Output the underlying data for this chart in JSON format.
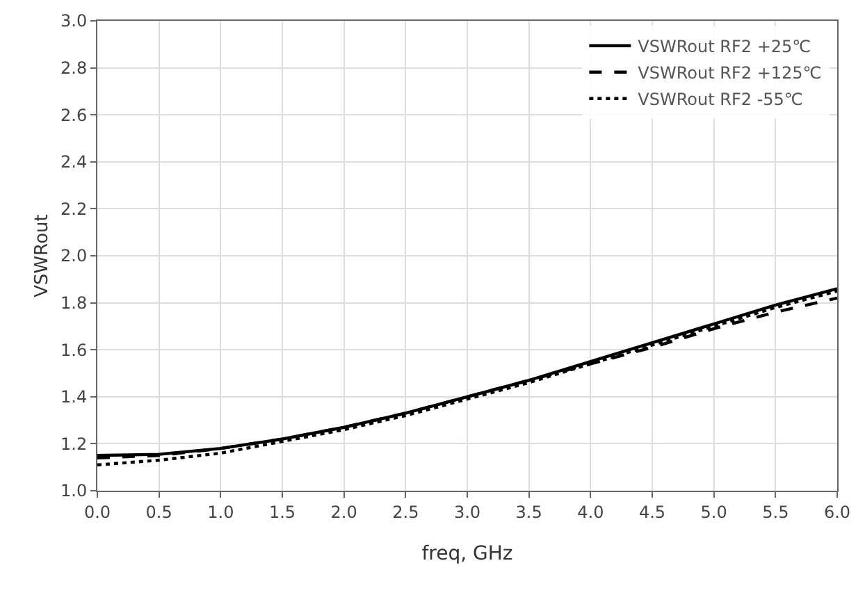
{
  "chart_data": {
    "type": "line",
    "xlabel": "freq, GHz",
    "ylabel": "VSWRout",
    "x": [
      0,
      0.5,
      1,
      1.5,
      2,
      2.5,
      3,
      3.5,
      4,
      4.5,
      5,
      5.5,
      6
    ],
    "series": [
      {
        "name": "VSWRout RF2 +25℃",
        "color": "#000000",
        "line_style": "solid",
        "values": [
          1.15,
          1.155,
          1.18,
          1.22,
          1.27,
          1.33,
          1.4,
          1.47,
          1.55,
          1.63,
          1.71,
          1.79,
          1.86
        ]
      },
      {
        "name": "VSWRout RF2 +125℃",
        "color": "#000000",
        "line_style": "dashed",
        "values": [
          1.14,
          1.15,
          1.18,
          1.22,
          1.27,
          1.33,
          1.4,
          1.47,
          1.54,
          1.61,
          1.69,
          1.76,
          1.82
        ]
      },
      {
        "name": "VSWRout RF2 -55℃",
        "color": "#000000",
        "line_style": "dotted",
        "values": [
          1.11,
          1.13,
          1.16,
          1.21,
          1.26,
          1.32,
          1.39,
          1.46,
          1.54,
          1.62,
          1.7,
          1.78,
          1.85
        ]
      }
    ],
    "xlim": [
      0,
      6
    ],
    "xticks": [
      {
        "value": 0,
        "label": "0.0"
      },
      0.5,
      {
        "value": 1,
        "label": "1.0"
      },
      1.5,
      {
        "value": 2,
        "label": "2.0"
      },
      2.5,
      {
        "value": 3,
        "label": "3.0"
      },
      3.5,
      {
        "value": 4,
        "label": "4.0"
      },
      4.5,
      {
        "value": 5,
        "label": "5.0"
      },
      5.5,
      {
        "value": 6,
        "label": "6.0"
      }
    ],
    "ylim": [
      1,
      3
    ],
    "yticks": [
      {
        "value": 1,
        "label": "1.0"
      },
      1.2,
      1.4,
      1.6,
      1.8,
      {
        "value": 2,
        "label": "2.0"
      },
      2.2,
      2.4,
      2.6,
      2.8,
      {
        "value": 3,
        "label": "3.0"
      }
    ],
    "grid": true,
    "legend": "top right",
    "marker": "none"
  }
}
